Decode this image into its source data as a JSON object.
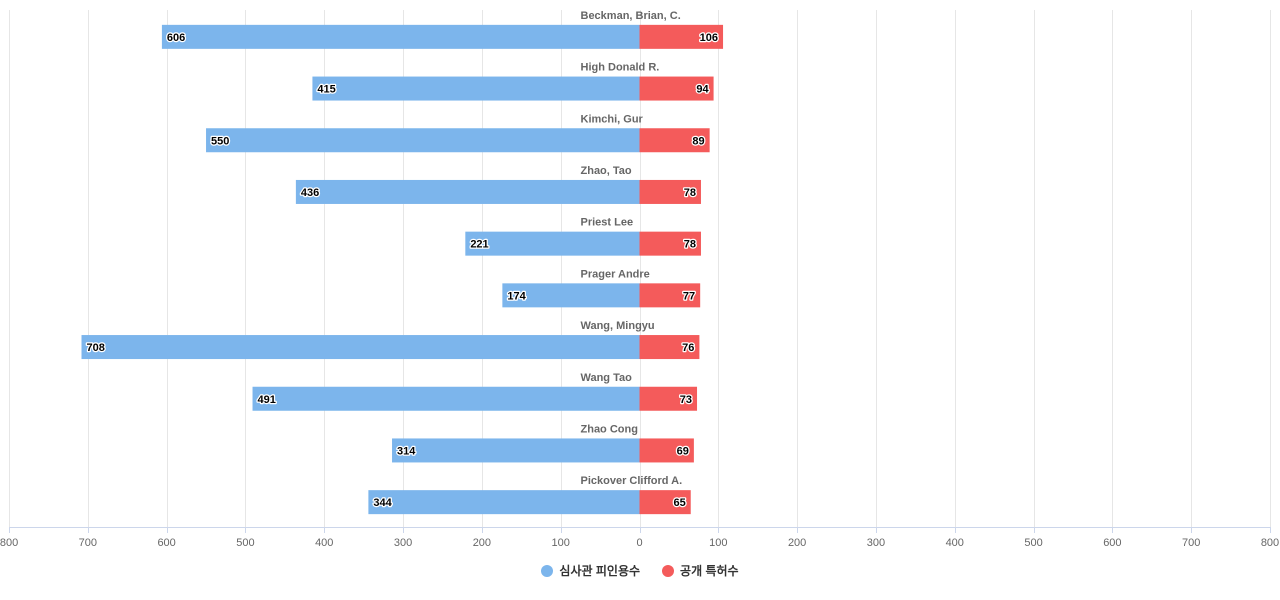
{
  "chart_data": {
    "type": "bar",
    "orientation": "horizontal",
    "layout": "diverging",
    "categories": [
      "Beckman, Brian, C.",
      "High Donald R.",
      "Kimchi, Gur",
      "Zhao, Tao",
      "Priest Lee",
      "Prager Andre",
      "Wang, Mingyu",
      "Wang Tao",
      "Zhao Cong",
      "Pickover Clifford A."
    ],
    "series": [
      {
        "name": "심사관 피인용수",
        "color": "#7cb5ec",
        "side": "left",
        "values": [
          606,
          415,
          550,
          436,
          221,
          174,
          708,
          491,
          314,
          344
        ]
      },
      {
        "name": "공개 특허수",
        "color": "#f45b5b",
        "side": "right",
        "values": [
          106,
          94,
          89,
          78,
          78,
          77,
          76,
          73,
          69,
          65
        ]
      }
    ],
    "xlim": [
      -800,
      800
    ],
    "x_ticks": [
      -800,
      -700,
      -600,
      -500,
      -400,
      -300,
      -200,
      -100,
      0,
      100,
      200,
      300,
      400,
      500,
      600,
      700,
      800
    ],
    "tick_labels": [
      "800",
      "700",
      "600",
      "500",
      "400",
      "300",
      "200",
      "100",
      "0",
      "100",
      "200",
      "300",
      "400",
      "500",
      "600",
      "700",
      "800"
    ],
    "grid": true,
    "legend_position": "bottom-center",
    "data_labels": true
  }
}
